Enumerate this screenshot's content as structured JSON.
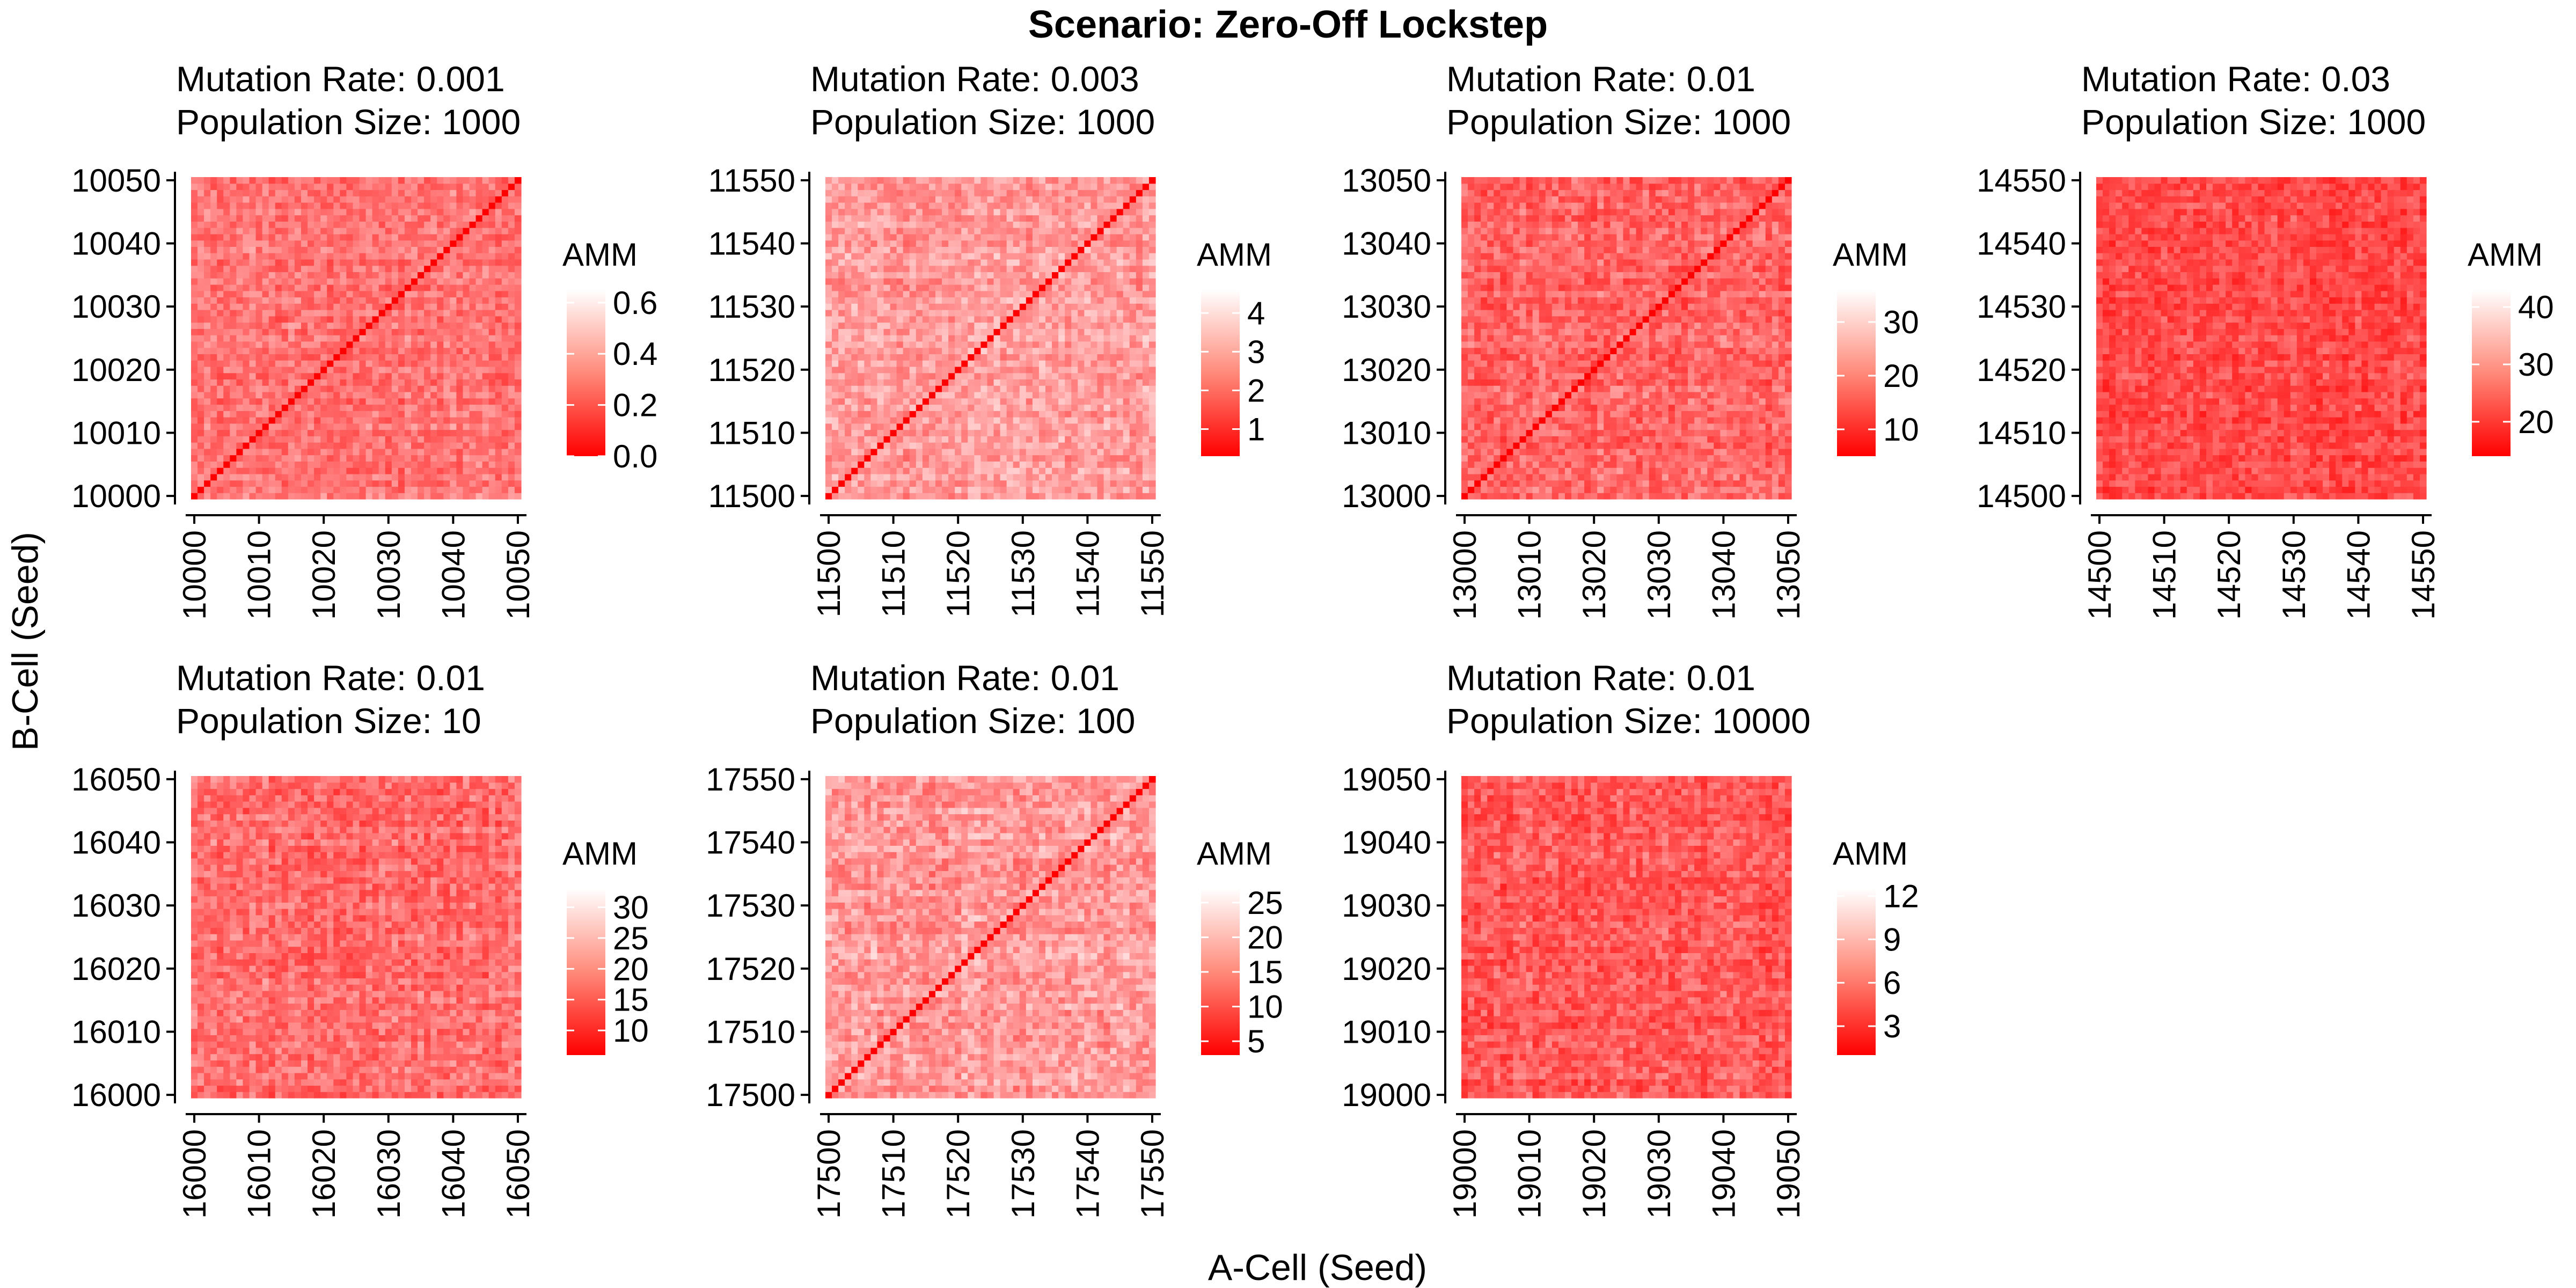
{
  "figure": {
    "title": "Scenario: Zero-Off Lockstep",
    "xlabel": "A-Cell (Seed)",
    "ylabel": "B-Cell (Seed)",
    "colors": {
      "low": "#ff0000",
      "high": "#ffffff",
      "axis": "#000000"
    }
  },
  "chart_data": [
    {
      "type": "heatmap",
      "strip": [
        "Mutation Rate: 0.001",
        "Population Size: 1000"
      ],
      "x_range": [
        10000,
        10050
      ],
      "y_range": [
        10000,
        10050
      ],
      "x_ticks": [
        10000,
        10010,
        10020,
        10030,
        10040,
        10050
      ],
      "y_ticks": [
        10000,
        10010,
        10020,
        10030,
        10040,
        10050
      ],
      "legend_title": "AMM",
      "legend_range": [
        0.0,
        0.65
      ],
      "legend_ticks": [
        "0.0",
        "0.2",
        "0.4",
        "0.6"
      ],
      "diagonal_low": true,
      "typical_range": [
        0.2,
        0.5
      ]
    },
    {
      "type": "heatmap",
      "strip": [
        "Mutation Rate: 0.003",
        "Population Size: 1000"
      ],
      "x_range": [
        11500,
        11550
      ],
      "y_range": [
        11500,
        11550
      ],
      "x_ticks": [
        11500,
        11510,
        11520,
        11530,
        11540,
        11550
      ],
      "y_ticks": [
        11500,
        11510,
        11520,
        11530,
        11540,
        11550
      ],
      "legend_title": "AMM",
      "legend_range": [
        0.3,
        4.6
      ],
      "legend_ticks": [
        "1",
        "2",
        "3",
        "4"
      ],
      "diagonal_low": true,
      "typical_range": [
        2.2,
        4.2
      ]
    },
    {
      "type": "heatmap",
      "strip": [
        "Mutation Rate: 0.01",
        "Population Size: 1000"
      ],
      "x_range": [
        13000,
        13050
      ],
      "y_range": [
        13000,
        13050
      ],
      "x_ticks": [
        13000,
        13010,
        13020,
        13030,
        13040,
        13050
      ],
      "y_ticks": [
        13000,
        13010,
        13020,
        13030,
        13040,
        13050
      ],
      "legend_title": "AMM",
      "legend_range": [
        5,
        36
      ],
      "legend_ticks": [
        "10",
        "20",
        "30"
      ],
      "diagonal_low": true,
      "typical_range": [
        12,
        28
      ]
    },
    {
      "type": "heatmap",
      "strip": [
        "Mutation Rate: 0.03",
        "Population Size: 1000"
      ],
      "x_range": [
        14500,
        14550
      ],
      "y_range": [
        14500,
        14550
      ],
      "x_ticks": [
        14500,
        14510,
        14520,
        14530,
        14540,
        14550
      ],
      "y_ticks": [
        14500,
        14510,
        14520,
        14530,
        14540,
        14550
      ],
      "legend_title": "AMM",
      "legend_range": [
        14,
        43
      ],
      "legend_ticks": [
        "20",
        "30",
        "40"
      ],
      "diagonal_low": false,
      "typical_range": [
        18,
        32
      ]
    },
    {
      "type": "heatmap",
      "strip": [
        "Mutation Rate: 0.01",
        "Population Size: 10"
      ],
      "x_range": [
        16000,
        16050
      ],
      "y_range": [
        16000,
        16050
      ],
      "x_ticks": [
        16000,
        16010,
        16020,
        16030,
        16040,
        16050
      ],
      "y_ticks": [
        16000,
        16010,
        16020,
        16030,
        16040,
        16050
      ],
      "legend_title": "AMM",
      "legend_range": [
        6,
        33
      ],
      "legend_ticks": [
        "10",
        "15",
        "20",
        "25",
        "30"
      ],
      "diagonal_low": false,
      "typical_range": [
        13,
        27
      ]
    },
    {
      "type": "heatmap",
      "strip": [
        "Mutation Rate: 0.01",
        "Population Size: 100"
      ],
      "x_range": [
        17500,
        17550
      ],
      "y_range": [
        17500,
        17550
      ],
      "x_ticks": [
        17500,
        17510,
        17520,
        17530,
        17540,
        17550
      ],
      "y_ticks": [
        17500,
        17510,
        17520,
        17530,
        17540,
        17550
      ],
      "legend_title": "AMM",
      "legend_range": [
        3,
        27
      ],
      "legend_ticks": [
        "5",
        "10",
        "15",
        "20",
        "25"
      ],
      "diagonal_low": true,
      "typical_range": [
        13,
        25
      ]
    },
    {
      "type": "heatmap",
      "strip": [
        "Mutation Rate: 0.01",
        "Population Size: 10000"
      ],
      "x_range": [
        19000,
        19050
      ],
      "y_range": [
        19000,
        19050
      ],
      "x_ticks": [
        19000,
        19010,
        19020,
        19030,
        19040,
        19050
      ],
      "y_ticks": [
        19000,
        19010,
        19020,
        19030,
        19040,
        19050
      ],
      "legend_title": "AMM",
      "legend_range": [
        1,
        12.5
      ],
      "legend_ticks": [
        "3",
        "6",
        "9",
        "12"
      ],
      "diagonal_low": false,
      "typical_range": [
        3,
        9
      ]
    }
  ]
}
